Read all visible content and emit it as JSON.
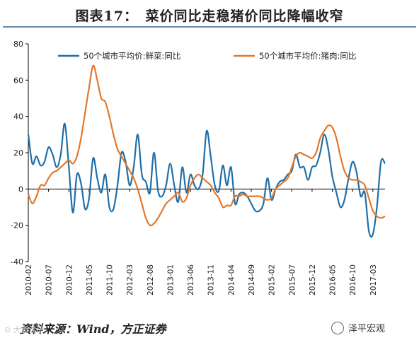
{
  "header": {
    "title": "图表17：　菜价同比走稳猪价同比降幅收窄"
  },
  "footer": {
    "source": "资料来源：Wind，方正证券",
    "badge": "泽平宏观",
    "watermark": "⊙ 大鱼读研"
  },
  "colors": {
    "vegetables": "#1f6fa8",
    "pork": "#e3782a",
    "axis": "#000000"
  },
  "chart_data": {
    "type": "line",
    "ylim": [
      -40,
      80
    ],
    "yticks": [
      -40,
      -20,
      0,
      20,
      40,
      60,
      80
    ],
    "x_range": [
      "2010-02",
      "2017-06"
    ],
    "xticks": [
      "2010-02",
      "2010-07",
      "2010-12",
      "2011-05",
      "2011-10",
      "2012-03",
      "2012-08",
      "2013-01",
      "2013-06",
      "2013-11",
      "2014-04",
      "2014-09",
      "2015-02",
      "2015-07",
      "2015-12",
      "2016-05",
      "2016-10",
      "2017-03"
    ],
    "legend_position": "top",
    "series": [
      {
        "name": "50个城市平均价:鲜菜:同比",
        "points": [
          [
            "2010-02",
            30
          ],
          [
            "2010-03",
            14
          ],
          [
            "2010-04",
            18
          ],
          [
            "2010-05",
            13
          ],
          [
            "2010-06",
            15
          ],
          [
            "2010-07",
            23
          ],
          [
            "2010-08",
            19
          ],
          [
            "2010-09",
            12
          ],
          [
            "2010-10",
            19
          ],
          [
            "2010-11",
            36
          ],
          [
            "2010-12",
            12
          ],
          [
            "2011-01",
            -13
          ],
          [
            "2011-02",
            8
          ],
          [
            "2011-03",
            3
          ],
          [
            "2011-04",
            -11
          ],
          [
            "2011-05",
            -5
          ],
          [
            "2011-06",
            17
          ],
          [
            "2011-07",
            6
          ],
          [
            "2011-08",
            -2
          ],
          [
            "2011-09",
            8
          ],
          [
            "2011-10",
            -10
          ],
          [
            "2011-11",
            -11
          ],
          [
            "2011-12",
            2
          ],
          [
            "2012-01",
            20
          ],
          [
            "2012-02",
            15
          ],
          [
            "2012-03",
            2
          ],
          [
            "2012-04",
            12
          ],
          [
            "2012-05",
            30
          ],
          [
            "2012-06",
            8
          ],
          [
            "2012-07",
            4
          ],
          [
            "2012-08",
            -2
          ],
          [
            "2012-09",
            20
          ],
          [
            "2012-10",
            -1
          ],
          [
            "2012-11",
            -4
          ],
          [
            "2012-12",
            2
          ],
          [
            "2013-01",
            14
          ],
          [
            "2013-02",
            2
          ],
          [
            "2013-03",
            -7
          ],
          [
            "2013-04",
            12
          ],
          [
            "2013-05",
            -2
          ],
          [
            "2013-06",
            8
          ],
          [
            "2013-07",
            2
          ],
          [
            "2013-08",
            0
          ],
          [
            "2013-09",
            8
          ],
          [
            "2013-10",
            32
          ],
          [
            "2013-11",
            18
          ],
          [
            "2013-12",
            2
          ],
          [
            "2014-01",
            -1
          ],
          [
            "2014-02",
            13
          ],
          [
            "2014-03",
            2
          ],
          [
            "2014-04",
            12
          ],
          [
            "2014-05",
            -8
          ],
          [
            "2014-06",
            -3
          ],
          [
            "2014-07",
            -2
          ],
          [
            "2014-08",
            -4
          ],
          [
            "2014-09",
            -8
          ],
          [
            "2014-10",
            -12
          ],
          [
            "2014-11",
            -12
          ],
          [
            "2014-12",
            -8
          ],
          [
            "2015-01",
            6
          ],
          [
            "2015-02",
            -6
          ],
          [
            "2015-03",
            0
          ],
          [
            "2015-04",
            4
          ],
          [
            "2015-05",
            5
          ],
          [
            "2015-06",
            8
          ],
          [
            "2015-07",
            10
          ],
          [
            "2015-08",
            19
          ],
          [
            "2015-09",
            12
          ],
          [
            "2015-10",
            12
          ],
          [
            "2015-11",
            5
          ],
          [
            "2015-12",
            12
          ],
          [
            "2016-01",
            13
          ],
          [
            "2016-02",
            20
          ],
          [
            "2016-03",
            30
          ],
          [
            "2016-04",
            22
          ],
          [
            "2016-05",
            7
          ],
          [
            "2016-06",
            -2
          ],
          [
            "2016-07",
            -10
          ],
          [
            "2016-08",
            -6
          ],
          [
            "2016-09",
            6
          ],
          [
            "2016-10",
            15
          ],
          [
            "2016-11",
            9
          ],
          [
            "2016-12",
            -4
          ],
          [
            "2017-01",
            -2
          ],
          [
            "2017-02",
            -23
          ],
          [
            "2017-03",
            -25
          ],
          [
            "2017-04",
            -10
          ],
          [
            "2017-05",
            15
          ],
          [
            "2017-06",
            14
          ]
        ]
      },
      {
        "name": "50个城市平均价:猪肉:同比",
        "points": [
          [
            "2010-02",
            -3
          ],
          [
            "2010-03",
            -8
          ],
          [
            "2010-04",
            -4
          ],
          [
            "2010-05",
            2
          ],
          [
            "2010-06",
            2
          ],
          [
            "2010-07",
            6
          ],
          [
            "2010-08",
            9
          ],
          [
            "2010-09",
            10
          ],
          [
            "2010-10",
            12
          ],
          [
            "2010-11",
            14
          ],
          [
            "2010-12",
            16
          ],
          [
            "2011-01",
            14
          ],
          [
            "2011-02",
            18
          ],
          [
            "2011-03",
            28
          ],
          [
            "2011-04",
            42
          ],
          [
            "2011-05",
            56
          ],
          [
            "2011-06",
            68
          ],
          [
            "2011-07",
            60
          ],
          [
            "2011-08",
            50
          ],
          [
            "2011-09",
            48
          ],
          [
            "2011-10",
            40
          ],
          [
            "2011-11",
            30
          ],
          [
            "2011-12",
            22
          ],
          [
            "2012-01",
            18
          ],
          [
            "2012-02",
            14
          ],
          [
            "2012-03",
            10
          ],
          [
            "2012-04",
            6
          ],
          [
            "2012-05",
            0
          ],
          [
            "2012-06",
            -8
          ],
          [
            "2012-07",
            -16
          ],
          [
            "2012-08",
            -20
          ],
          [
            "2012-09",
            -19
          ],
          [
            "2012-10",
            -16
          ],
          [
            "2012-11",
            -12
          ],
          [
            "2012-12",
            -8
          ],
          [
            "2013-01",
            -6
          ],
          [
            "2013-02",
            -4
          ],
          [
            "2013-03",
            -2
          ],
          [
            "2013-04",
            -7
          ],
          [
            "2013-05",
            -5
          ],
          [
            "2013-06",
            2
          ],
          [
            "2013-07",
            6
          ],
          [
            "2013-08",
            8
          ],
          [
            "2013-09",
            6
          ],
          [
            "2013-10",
            4
          ],
          [
            "2013-11",
            2
          ],
          [
            "2013-12",
            -2
          ],
          [
            "2014-01",
            -5
          ],
          [
            "2014-02",
            -10
          ],
          [
            "2014-03",
            -9
          ],
          [
            "2014-04",
            -9
          ],
          [
            "2014-05",
            -4
          ],
          [
            "2014-06",
            -4
          ],
          [
            "2014-07",
            -3
          ],
          [
            "2014-08",
            -4
          ],
          [
            "2014-09",
            -4
          ],
          [
            "2014-10",
            -4
          ],
          [
            "2014-11",
            -4
          ],
          [
            "2014-12",
            -5
          ],
          [
            "2015-01",
            -6
          ],
          [
            "2015-02",
            -5
          ],
          [
            "2015-03",
            0
          ],
          [
            "2015-04",
            2
          ],
          [
            "2015-05",
            4
          ],
          [
            "2015-06",
            6
          ],
          [
            "2015-07",
            12
          ],
          [
            "2015-08",
            18
          ],
          [
            "2015-09",
            20
          ],
          [
            "2015-10",
            19
          ],
          [
            "2015-11",
            18
          ],
          [
            "2015-12",
            17
          ],
          [
            "2016-01",
            20
          ],
          [
            "2016-02",
            28
          ],
          [
            "2016-03",
            32
          ],
          [
            "2016-04",
            35
          ],
          [
            "2016-05",
            34
          ],
          [
            "2016-06",
            28
          ],
          [
            "2016-07",
            18
          ],
          [
            "2016-08",
            10
          ],
          [
            "2016-09",
            6
          ],
          [
            "2016-10",
            5
          ],
          [
            "2016-11",
            5
          ],
          [
            "2016-12",
            4
          ],
          [
            "2017-01",
            2
          ],
          [
            "2017-02",
            -5
          ],
          [
            "2017-03",
            -12
          ],
          [
            "2017-04",
            -15
          ],
          [
            "2017-05",
            -16
          ],
          [
            "2017-06",
            -15
          ]
        ]
      }
    ]
  }
}
